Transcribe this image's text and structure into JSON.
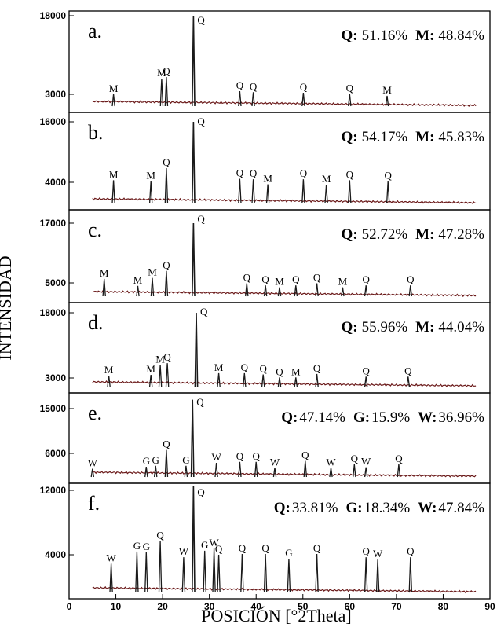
{
  "chart_data": {
    "type": "line",
    "xlabel": "POSICIÓN [°2Theta]",
    "ylabel": "INTENSIDAD",
    "xlim": [
      0,
      90
    ],
    "x_ticks": [
      "0",
      "10",
      "20",
      "30",
      "40",
      "50",
      "60",
      "70",
      "80",
      "90"
    ],
    "grid": false,
    "panels": [
      {
        "letter": "a.",
        "y_ticks": [
          "18000",
          "3000"
        ],
        "composition": [
          {
            "key": "Q:",
            "val": "51.16%"
          },
          {
            "key": "M:",
            "val": "48.84%"
          }
        ],
        "peaks": [
          {
            "label": "M",
            "x": 9.5,
            "y": 3000
          },
          {
            "label": "M",
            "x": 19.8,
            "y": 6000
          },
          {
            "label": "Q",
            "x": 20.8,
            "y": 6300
          },
          {
            "label": "Q",
            "x": 26.6,
            "y": 18000
          },
          {
            "label": "Q",
            "x": 36.5,
            "y": 3600
          },
          {
            "label": "Q",
            "x": 39.4,
            "y": 3400
          },
          {
            "label": "Q",
            "x": 50.1,
            "y": 3300
          },
          {
            "label": "Q",
            "x": 60.0,
            "y": 3100
          },
          {
            "label": "M",
            "x": 68.0,
            "y": 2700
          }
        ]
      },
      {
        "letter": "b.",
        "y_ticks": [
          "16000",
          "4000"
        ],
        "composition": [
          {
            "key": "Q:",
            "val": "54.17%"
          },
          {
            "key": "M:",
            "val": "45.83%"
          }
        ],
        "peaks": [
          {
            "label": "M",
            "x": 9.5,
            "y": 4400
          },
          {
            "label": "M",
            "x": 17.5,
            "y": 4200
          },
          {
            "label": "Q",
            "x": 20.8,
            "y": 6800
          },
          {
            "label": "Q",
            "x": 26.6,
            "y": 16000
          },
          {
            "label": "Q",
            "x": 36.5,
            "y": 4700
          },
          {
            "label": "Q",
            "x": 39.4,
            "y": 4600
          },
          {
            "label": "M",
            "x": 42.5,
            "y": 3600
          },
          {
            "label": "Q",
            "x": 50.1,
            "y": 4600
          },
          {
            "label": "M",
            "x": 55.0,
            "y": 3500
          },
          {
            "label": "Q",
            "x": 60.0,
            "y": 4400
          },
          {
            "label": "Q",
            "x": 68.2,
            "y": 4200
          }
        ]
      },
      {
        "letter": "c.",
        "y_ticks": [
          "17000",
          "5000"
        ],
        "composition": [
          {
            "key": "Q:",
            "val": "52.72%"
          },
          {
            "key": "M:",
            "val": "47.28%"
          }
        ],
        "peaks": [
          {
            "label": "M",
            "x": 7.5,
            "y": 5800
          },
          {
            "label": "M",
            "x": 14.7,
            "y": 4400
          },
          {
            "label": "M",
            "x": 17.8,
            "y": 6000
          },
          {
            "label": "Q",
            "x": 20.8,
            "y": 7400
          },
          {
            "label": "Q",
            "x": 26.6,
            "y": 17000
          },
          {
            "label": "Q",
            "x": 38.0,
            "y": 4900
          },
          {
            "label": "Q",
            "x": 42.0,
            "y": 4500
          },
          {
            "label": "M",
            "x": 45.0,
            "y": 4100
          },
          {
            "label": "Q",
            "x": 48.5,
            "y": 4500
          },
          {
            "label": "Q",
            "x": 53.0,
            "y": 4900
          },
          {
            "label": "M",
            "x": 58.5,
            "y": 4100
          },
          {
            "label": "Q",
            "x": 63.5,
            "y": 4500
          },
          {
            "label": "Q",
            "x": 73.0,
            "y": 4500
          }
        ]
      },
      {
        "letter": "d.",
        "y_ticks": [
          "18000",
          "3000"
        ],
        "composition": [
          {
            "key": "Q:",
            "val": "55.96%"
          },
          {
            "key": "M:",
            "val": "44.04%"
          }
        ],
        "peaks": [
          {
            "label": "M",
            "x": 8.5,
            "y": 3500
          },
          {
            "label": "M",
            "x": 17.5,
            "y": 3700
          },
          {
            "label": "M",
            "x": 19.5,
            "y": 6000
          },
          {
            "label": "Q",
            "x": 21.0,
            "y": 6400
          },
          {
            "label": "Q",
            "x": 27.2,
            "y": 18000
          },
          {
            "label": "M",
            "x": 32.0,
            "y": 4100
          },
          {
            "label": "Q",
            "x": 37.5,
            "y": 4100
          },
          {
            "label": "Q",
            "x": 41.5,
            "y": 3800
          },
          {
            "label": "Q",
            "x": 45.0,
            "y": 3100
          },
          {
            "label": "M",
            "x": 48.5,
            "y": 3100
          },
          {
            "label": "Q",
            "x": 53.0,
            "y": 3900
          },
          {
            "label": "Q",
            "x": 63.5,
            "y": 3300
          },
          {
            "label": "Q",
            "x": 72.5,
            "y": 3300
          }
        ]
      },
      {
        "letter": "e.",
        "y_ticks": [
          "15000",
          "6000"
        ],
        "composition": [
          {
            "key": "Q:",
            "val": "47.14%"
          },
          {
            "key": "G:",
            "val": "15.9%"
          },
          {
            "key": "W:",
            "val": "36.96%"
          }
        ],
        "peaks": [
          {
            "label": "W",
            "x": 5.0,
            "y": 2900
          },
          {
            "label": "G",
            "x": 16.5,
            "y": 3300
          },
          {
            "label": "G",
            "x": 18.5,
            "y": 3500
          },
          {
            "label": "Q",
            "x": 20.8,
            "y": 6700
          },
          {
            "label": "G",
            "x": 25.0,
            "y": 3500
          },
          {
            "label": "Q",
            "x": 26.4,
            "y": 16800
          },
          {
            "label": "W",
            "x": 31.5,
            "y": 4100
          },
          {
            "label": "Q",
            "x": 36.5,
            "y": 4300
          },
          {
            "label": "Q",
            "x": 40.0,
            "y": 4300
          },
          {
            "label": "W",
            "x": 44.0,
            "y": 3100
          },
          {
            "label": "Q",
            "x": 50.5,
            "y": 4500
          },
          {
            "label": "W",
            "x": 56.0,
            "y": 3100
          },
          {
            "label": "Q",
            "x": 61.0,
            "y": 3800
          },
          {
            "label": "W",
            "x": 63.5,
            "y": 3200
          },
          {
            "label": "Q",
            "x": 70.5,
            "y": 3800
          }
        ]
      },
      {
        "letter": "f.",
        "y_ticks": [
          "12000",
          "4000"
        ],
        "composition": [
          {
            "key": "Q:",
            "val": "33.81%"
          },
          {
            "key": "G:",
            "val": "18.34%"
          },
          {
            "key": "W:",
            "val": "47.84%"
          }
        ],
        "peaks": [
          {
            "label": "W",
            "x": 9.0,
            "y": 2900
          },
          {
            "label": "G",
            "x": 14.5,
            "y": 4400
          },
          {
            "label": "G",
            "x": 16.5,
            "y": 4300
          },
          {
            "label": "Q",
            "x": 19.5,
            "y": 5700
          },
          {
            "label": "W",
            "x": 24.5,
            "y": 3700
          },
          {
            "label": "Q",
            "x": 26.6,
            "y": 13000
          },
          {
            "label": "G",
            "x": 29.0,
            "y": 4500
          },
          {
            "label": "W",
            "x": 31.0,
            "y": 4800
          },
          {
            "label": "Q",
            "x": 32.0,
            "y": 4000
          },
          {
            "label": "Q",
            "x": 37.0,
            "y": 4100
          },
          {
            "label": "Q",
            "x": 42.0,
            "y": 4100
          },
          {
            "label": "G",
            "x": 47.0,
            "y": 3500
          },
          {
            "label": "Q",
            "x": 53.0,
            "y": 4100
          },
          {
            "label": "Q",
            "x": 63.5,
            "y": 3700
          },
          {
            "label": "W",
            "x": 66.0,
            "y": 3400
          },
          {
            "label": "Q",
            "x": 73.0,
            "y": 3700
          }
        ]
      }
    ]
  }
}
